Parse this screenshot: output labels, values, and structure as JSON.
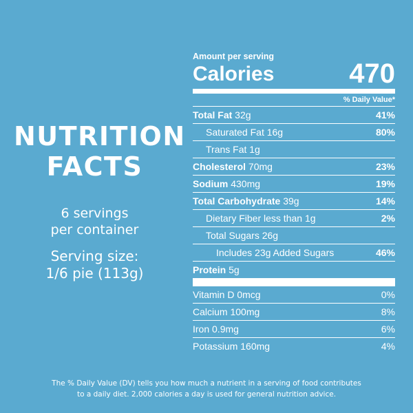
{
  "left": {
    "title_line1": "NUTRITION",
    "title_line2": "FACTS",
    "servings_line1": "6 servings",
    "servings_line2": "per container",
    "size_line1": "Serving size:",
    "size_line2": "1/6 pie (113g)"
  },
  "panel": {
    "amount_label": "Amount per serving",
    "calories_label": "Calories",
    "calories_value": "470",
    "dv_header": "% Daily Value*",
    "rows": [
      {
        "bold": "Total Fat",
        "text": " 32g",
        "pct": "41%"
      },
      {
        "bold": "",
        "text": "Saturated Fat 16g",
        "pct": "80%"
      },
      {
        "bold": "",
        "text": "Trans Fat 1g",
        "pct": ""
      },
      {
        "bold": "Cholesterol",
        "text": " 70mg",
        "pct": "23%"
      },
      {
        "bold": "Sodium",
        "text": " 430mg",
        "pct": "19%"
      },
      {
        "bold": "Total Carbohydrate",
        "text": " 39g",
        "pct": "14%"
      },
      {
        "bold": "",
        "text": "Dietary Fiber less than 1g",
        "pct": "2%"
      },
      {
        "bold": "",
        "text": "Total Sugars 26g",
        "pct": ""
      },
      {
        "bold": "",
        "text": "Includes 23g Added Sugars",
        "pct": "46%"
      },
      {
        "bold": "Protein",
        "text": " 5g",
        "pct": ""
      }
    ],
    "vitamins": [
      {
        "text": "Vitamin D 0mcg",
        "pct": "0%"
      },
      {
        "text": "Calcium 100mg",
        "pct": "8%"
      },
      {
        "text": "Iron 0.9mg",
        "pct": "6%"
      },
      {
        "text": "Potassium 160mg",
        "pct": "4%"
      }
    ]
  },
  "footnote": {
    "line1": "The % Daily Value (DV) tells you how much a nutrient in a serving of food contributes",
    "line2": "to a daily diet. 2,000 calories a day is used for general nutrition advice."
  }
}
